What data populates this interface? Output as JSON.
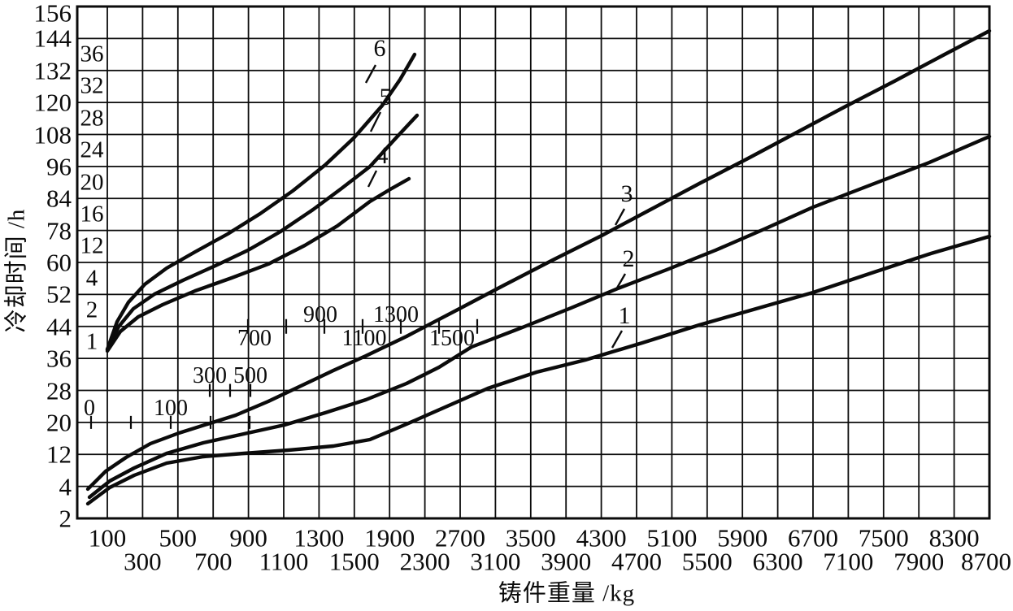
{
  "figure": {
    "x_axis_title": "铸件重量 /kg",
    "y_axis_title": "冷却时间 /h",
    "y_outer_tick_labels": [
      "156",
      "144",
      "132",
      "120",
      "108",
      "96",
      "84",
      "78",
      "60",
      "52",
      "44",
      "36",
      "28",
      "20",
      "12",
      "4",
      "2"
    ],
    "y_inner_tick_labels": [
      "36",
      "32",
      "28",
      "24",
      "20",
      "16",
      "12",
      "4",
      "2",
      "1"
    ],
    "x_tick_labels_row1": [
      "100",
      "500",
      "900",
      "1300",
      "1900",
      "2700",
      "3500",
      "4300",
      "5100",
      "5900",
      "6700",
      "7500",
      "8300"
    ],
    "x_tick_labels_row2": [
      "300",
      "700",
      "1100",
      "1500",
      "2300",
      "3100",
      "3900",
      "4700",
      "5500",
      "6300",
      "7100",
      "7900",
      "8700"
    ],
    "inner_scale_group_a": [
      "0",
      "100"
    ],
    "inner_scale_group_b": [
      "300",
      "500"
    ],
    "inner_scale_group_c_above": [
      "900",
      "1300"
    ],
    "inner_scale_group_c_below": [
      "700",
      "1100",
      "1500"
    ],
    "curve_labels": [
      "1",
      "2",
      "3",
      "4",
      "5",
      "6"
    ],
    "ink_color": "#0b0b0b",
    "background_color": "#ffffff"
  },
  "chart_data": {
    "type": "line",
    "title": "",
    "xlabel": "铸件重量 /kg",
    "ylabel": "冷却时间 /h",
    "grid": true,
    "x_axis_tick_labels": [
      100,
      300,
      500,
      700,
      900,
      1100,
      1300,
      1500,
      1900,
      2300,
      2700,
      3100,
      3500,
      3900,
      4300,
      4700,
      5100,
      5500,
      5900,
      6300,
      6700,
      7100,
      7500,
      7900,
      8300,
      8700
    ],
    "y_axis_outer_tick_labels": [
      156,
      144,
      132,
      120,
      108,
      96,
      84,
      78,
      60,
      52,
      44,
      36,
      28,
      20,
      12,
      4,
      2
    ],
    "y_axis_inner_tick_labels": [
      36,
      32,
      28,
      24,
      20,
      16,
      12,
      4,
      2,
      1
    ],
    "secondary_x_scale_labels": [
      0,
      100,
      300,
      500,
      700,
      900,
      1100,
      1300,
      1500
    ],
    "series": [
      {
        "name": "1",
        "points_kg_h": [
          [
            100,
            4
          ],
          [
            1100,
            13
          ],
          [
            2700,
            26
          ],
          [
            4700,
            40
          ],
          [
            6700,
            53
          ],
          [
            8700,
            75
          ]
        ]
      },
      {
        "name": "2",
        "points_kg_h": [
          [
            100,
            5
          ],
          [
            1100,
            19
          ],
          [
            2700,
            38
          ],
          [
            4700,
            55
          ],
          [
            6700,
            82
          ],
          [
            8700,
            107
          ]
        ]
      },
      {
        "name": "3",
        "points_kg_h": [
          [
            100,
            8
          ],
          [
            1100,
            27
          ],
          [
            2700,
            49
          ],
          [
            4700,
            81
          ],
          [
            6700,
            112
          ],
          [
            8700,
            147
          ]
        ]
      },
      {
        "name": "4",
        "points_kg_h": [
          [
            50,
            1
          ],
          [
            400,
            8
          ],
          [
            800,
            12
          ],
          [
            1200,
            16
          ],
          [
            1450,
            20
          ]
        ]
      },
      {
        "name": "5",
        "points_kg_h": [
          [
            50,
            1
          ],
          [
            400,
            10
          ],
          [
            800,
            14
          ],
          [
            1200,
            22
          ],
          [
            1500,
            28
          ]
        ]
      },
      {
        "name": "6",
        "points_kg_h": [
          [
            50,
            1
          ],
          [
            400,
            11
          ],
          [
            900,
            20
          ],
          [
            1300,
            32
          ],
          [
            1450,
            36
          ]
        ]
      }
    ],
    "legend_position": "none",
    "axis_note": "curves 1-3 use outer y scale and bottom x axis; curves 4-6 use inner y scale and the staircase secondary kg scale drawn inside the grid"
  }
}
